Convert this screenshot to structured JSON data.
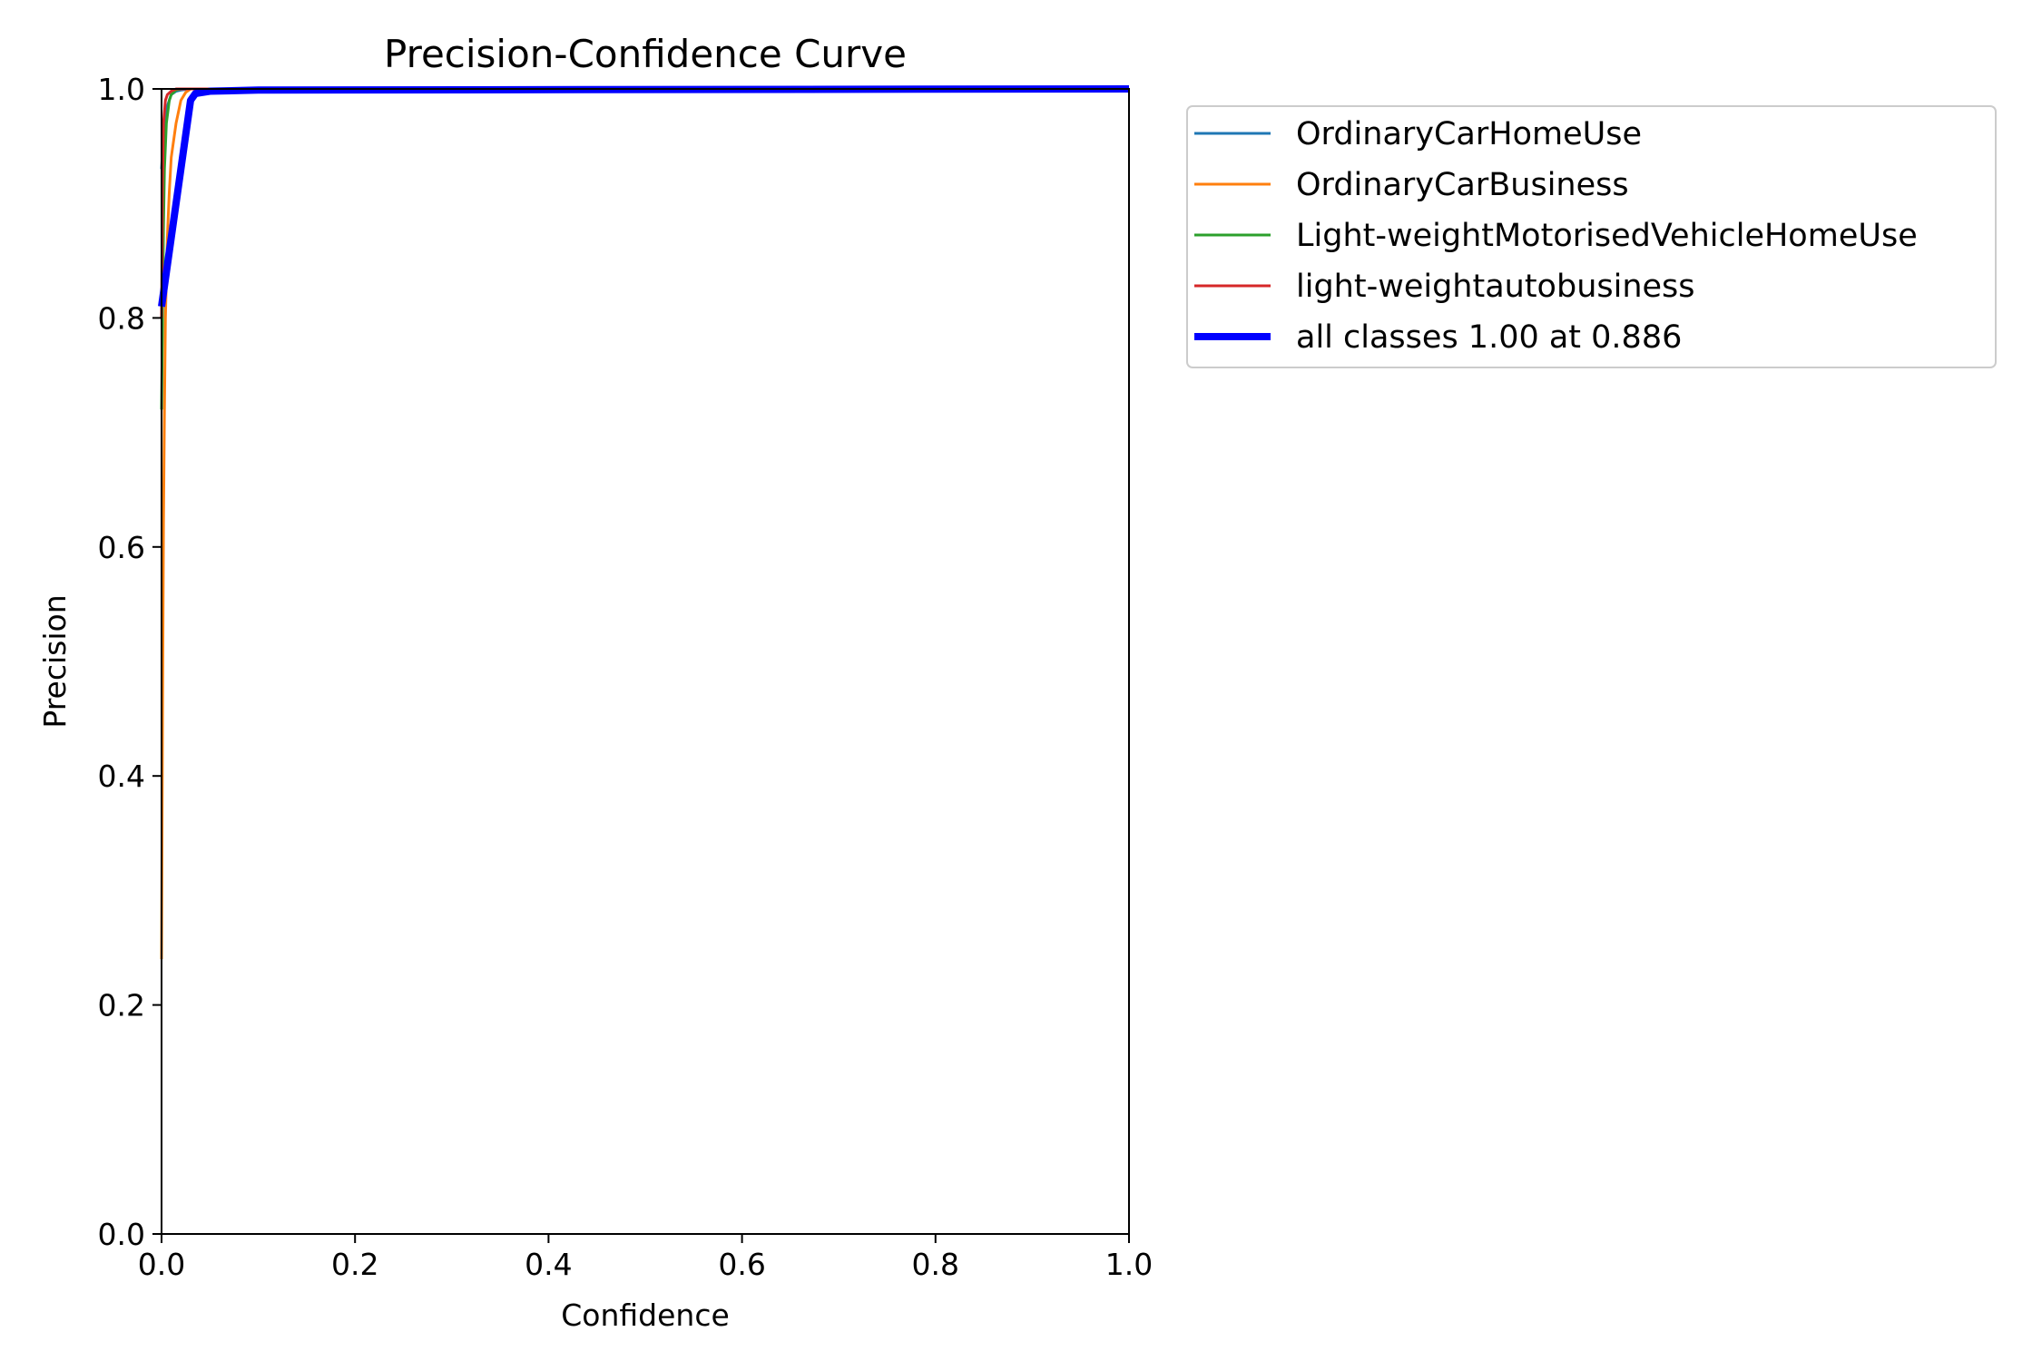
{
  "chart_data": {
    "type": "line",
    "title": "Precision-Confidence Curve",
    "xlabel": "Confidence",
    "ylabel": "Precision",
    "xlim": [
      0.0,
      1.0
    ],
    "ylim": [
      0.0,
      1.0
    ],
    "x_ticks": [
      "0.0",
      "0.2",
      "0.4",
      "0.6",
      "0.8",
      "1.0"
    ],
    "y_ticks": [
      "0.0",
      "0.2",
      "0.4",
      "0.6",
      "0.8",
      "1.0"
    ],
    "grid": false,
    "legend_position": "outside-right-top",
    "series": [
      {
        "name": "OrdinaryCarHomeUse",
        "color": "#1f77b4",
        "linewidth": "thin",
        "x": [
          0.0,
          0.002,
          0.004,
          0.006,
          0.008,
          0.01,
          0.015,
          0.02,
          0.03,
          1.0
        ],
        "y": [
          0.93,
          0.96,
          0.975,
          0.985,
          0.99,
          0.995,
          0.998,
          0.999,
          1.0,
          1.0
        ]
      },
      {
        "name": "OrdinaryCarBusiness",
        "color": "#ff7f0e",
        "linewidth": "thin",
        "x": [
          0.0,
          0.001,
          0.002,
          0.003,
          0.004,
          0.006,
          0.008,
          0.01,
          0.015,
          0.02,
          0.025,
          0.03,
          1.0
        ],
        "y": [
          0.24,
          0.45,
          0.62,
          0.72,
          0.8,
          0.87,
          0.91,
          0.94,
          0.97,
          0.99,
          0.997,
          1.0,
          1.0
        ]
      },
      {
        "name": "Light-weightMotorisedVehicleHomeUse",
        "color": "#2ca02c",
        "linewidth": "thin",
        "x": [
          0.0,
          0.001,
          0.002,
          0.003,
          0.005,
          0.008,
          0.01,
          0.015,
          0.02,
          1.0
        ],
        "y": [
          0.72,
          0.8,
          0.88,
          0.93,
          0.97,
          0.99,
          0.995,
          0.999,
          1.0,
          1.0
        ]
      },
      {
        "name": "light-weightautobusiness",
        "color": "#d62728",
        "linewidth": "thin",
        "x": [
          0.0,
          0.001,
          0.002,
          0.004,
          0.006,
          0.01,
          0.015,
          1.0
        ],
        "y": [
          0.8,
          0.92,
          0.97,
          0.99,
          0.995,
          0.998,
          1.0,
          1.0
        ]
      },
      {
        "name": "all classes 1.00 at 0.886",
        "color": "#0000ff",
        "linewidth": "thick",
        "x": [
          0.0,
          0.005,
          0.01,
          0.015,
          0.02,
          0.025,
          0.03,
          0.035,
          0.05,
          0.1,
          1.0
        ],
        "y": [
          0.81,
          0.84,
          0.87,
          0.9,
          0.93,
          0.96,
          0.99,
          0.996,
          0.998,
          0.999,
          1.0
        ]
      }
    ]
  }
}
